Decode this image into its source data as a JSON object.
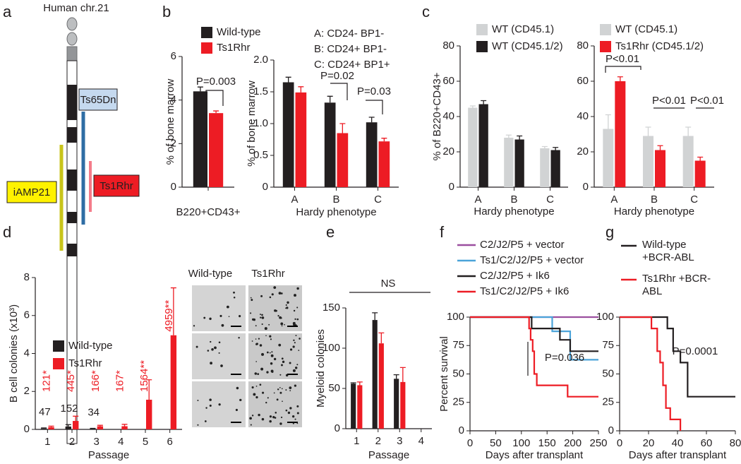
{
  "panels": [
    "a",
    "b",
    "c",
    "d",
    "e",
    "f",
    "g"
  ],
  "diagram": {
    "title": "Human chr.21",
    "labels": [
      "Ts65Dn",
      "iAMP21",
      "Ts1Rhr"
    ]
  },
  "images": {
    "columns": [
      "Wild-type",
      "Ts1Rhr"
    ]
  },
  "chart_data": [
    {
      "type": "bar",
      "categories": [
        "B220+CD43+"
      ],
      "series": [
        {
          "name": "Wild-type",
          "color": "#231f20",
          "values": [
            4.4
          ],
          "errors": [
            0.2
          ]
        },
        {
          "name": "Ts1Rhr",
          "color": "#ed1c24",
          "values": [
            3.4
          ],
          "errors": [
            0.1
          ]
        }
      ],
      "ylim": [
        0,
        6
      ],
      "yticks": [
        0,
        2,
        4,
        6
      ],
      "ylabel": "% of bone marrow",
      "annotations": [
        "P=0.003"
      ]
    },
    {
      "type": "bar",
      "categories": [
        "A",
        "B",
        "C"
      ],
      "series": [
        {
          "color": "#231f20",
          "values": [
            1.65,
            1.33,
            1.02
          ],
          "errors": [
            0.08,
            0.1,
            0.08
          ]
        },
        {
          "color": "#ed1c24",
          "values": [
            1.49,
            0.85,
            0.72
          ],
          "errors": [
            0.09,
            0.15,
            0.05
          ]
        }
      ],
      "ylim": [
        0,
        2
      ],
      "yticks": [
        0,
        0.5,
        {
          "value": 1,
          "label": "1.0"
        },
        1.5,
        {
          "value": 2,
          "label": "2.0"
        }
      ],
      "ylabel": "% of bone marrow",
      "xlabel": "Hardy phenotype",
      "annotations": [
        "A: CD24-  BP1-",
        "B: CD24+ BP1-",
        "C: CD24+ BP1+",
        "P=0.02",
        "P=0.03"
      ]
    },
    {
      "type": "bar",
      "categories": [
        "A",
        "B",
        "C"
      ],
      "series": [
        {
          "name": "WT (CD45.1)",
          "color": "#d1d3d4",
          "values": [
            45,
            28,
            22
          ],
          "errors": [
            1,
            1.5,
            1
          ]
        },
        {
          "name": "WT (CD45.1/2)",
          "color": "#231f20",
          "values": [
            47,
            27,
            21
          ],
          "errors": [
            2,
            2,
            1.5
          ]
        }
      ],
      "ylim": [
        0,
        80
      ],
      "yticks": [
        0,
        20,
        40,
        60,
        80
      ],
      "ylabel": "% of B220+CD43+",
      "xlabel": "Hardy phenotype"
    },
    {
      "type": "bar",
      "categories": [
        "A",
        "B",
        "C"
      ],
      "series": [
        {
          "name": "WT (CD45.1)",
          "color": "#d1d3d4",
          "values": [
            33,
            29,
            29
          ],
          "errors": [
            8,
            5,
            5
          ]
        },
        {
          "name": "Ts1Rhr (CD45.1/2)",
          "color": "#ed1c24",
          "values": [
            60,
            21,
            15
          ],
          "errors": [
            2.5,
            2.5,
            2
          ]
        }
      ],
      "ylim": [
        0,
        80
      ],
      "yticks": [
        0,
        20,
        40,
        60,
        80
      ],
      "xlabel": "Hardy phenotype",
      "annotations": [
        "P<0.01",
        "P<0.01",
        "P<0.01"
      ]
    },
    {
      "type": "bar",
      "categories": [
        "1",
        "2",
        "3",
        "4",
        "5",
        "6"
      ],
      "series": [
        {
          "name": "Wild-type",
          "color": "#231f20",
          "values": [
            0.047,
            0.152,
            0.034,
            null,
            null,
            null
          ],
          "errors": [
            0.03,
            0.1,
            0.02,
            null,
            null,
            null
          ],
          "value_labels": [
            "47",
            "152",
            "34",
            null,
            null,
            null
          ]
        },
        {
          "name": "Ts1Rhr",
          "color": "#ed1c24",
          "values": [
            0.121,
            0.445,
            0.166,
            0.167,
            1.564,
            4.959
          ],
          "errors": [
            0.05,
            0.25,
            0.05,
            0.1,
            1.05,
            2.5
          ],
          "value_labels": [
            "121*",
            "445*",
            "166*",
            "167*",
            "1564**",
            "4959**"
          ]
        }
      ],
      "ylim": [
        0,
        8
      ],
      "yticks": [
        0,
        2,
        4,
        6,
        8
      ],
      "ylabel": "B cell colonies (x10³)",
      "xlabel": "Passage"
    },
    {
      "type": "bar",
      "categories": [
        "1",
        "2",
        "3",
        "4"
      ],
      "series": [
        {
          "color": "#231f20",
          "values": [
            56,
            135,
            62,
            null
          ],
          "errors": [
            1,
            9,
            5,
            null
          ]
        },
        {
          "color": "#ed1c24",
          "values": [
            54,
            106,
            58,
            null
          ],
          "errors": [
            4,
            13,
            18,
            null
          ]
        }
      ],
      "ylim": [
        0,
        150
      ],
      "yticks": [
        0,
        50,
        100,
        150
      ],
      "ylabel": "Myeloid colonies",
      "xlabel": "Passage",
      "annotations": [
        "NS"
      ]
    },
    {
      "type": "line",
      "xlim": [
        0,
        250
      ],
      "xticks": [
        0,
        50,
        100,
        150,
        200,
        250
      ],
      "ylim": [
        0,
        100
      ],
      "yticks": [
        0,
        25,
        50,
        75,
        100
      ],
      "ylabel": "Percent survival",
      "xlabel": "Days after transplant",
      "annotations": [
        "P=0.036"
      ],
      "series": [
        {
          "name": "C2/J2/P5 + vector",
          "color": "#9b4f9f",
          "x": [
            0,
            250
          ],
          "values": [
            100,
            100
          ]
        },
        {
          "name": "Ts1/C2/J2/P5 + vector",
          "color": "#4ba3d9",
          "x": [
            0,
            160,
            160,
            195,
            195,
            250
          ],
          "values": [
            100,
            100,
            87.5,
            87.5,
            62.5,
            62.5
          ]
        },
        {
          "name": "C2/J2/P5 + Ik6",
          "color": "#231f20",
          "x": [
            0,
            120,
            120,
            175,
            175,
            195,
            195,
            250
          ],
          "values": [
            100,
            100,
            90,
            90,
            80,
            80,
            70,
            70
          ]
        },
        {
          "name": "Ts1/C2/J2/P5 + Ik6",
          "color": "#ed1c24",
          "x": [
            0,
            115,
            115,
            118,
            118,
            122,
            122,
            125,
            125,
            130,
            130,
            190,
            190,
            250
          ],
          "values": [
            100,
            100,
            90,
            90,
            80,
            80,
            70,
            70,
            50,
            50,
            40,
            40,
            30,
            30
          ]
        }
      ]
    },
    {
      "type": "line",
      "xlim": [
        0,
        80
      ],
      "xticks": [
        0,
        20,
        40,
        60,
        80
      ],
      "ylim": [
        0,
        100
      ],
      "yticks": [
        0,
        25,
        50,
        75,
        100
      ],
      "xlabel": "Days after transplant",
      "annotations": [
        "P=0.0001"
      ],
      "series": [
        {
          "name": "Wild-type +BCR-ABL",
          "color": "#231f20",
          "x": [
            0,
            33,
            33,
            37,
            37,
            42,
            42,
            47,
            47,
            80
          ],
          "values": [
            100,
            100,
            90,
            90,
            70,
            70,
            60,
            60,
            30,
            30
          ]
        },
        {
          "name": "Ts1Rhr +BCR-ABL",
          "color": "#ed1c24",
          "x": [
            0,
            22,
            22,
            26,
            26,
            28,
            28,
            30,
            30,
            32,
            32,
            35,
            35,
            42,
            42
          ],
          "values": [
            100,
            100,
            90,
            90,
            70,
            70,
            60,
            60,
            40,
            40,
            20,
            20,
            10,
            10,
            0
          ]
        }
      ]
    }
  ]
}
